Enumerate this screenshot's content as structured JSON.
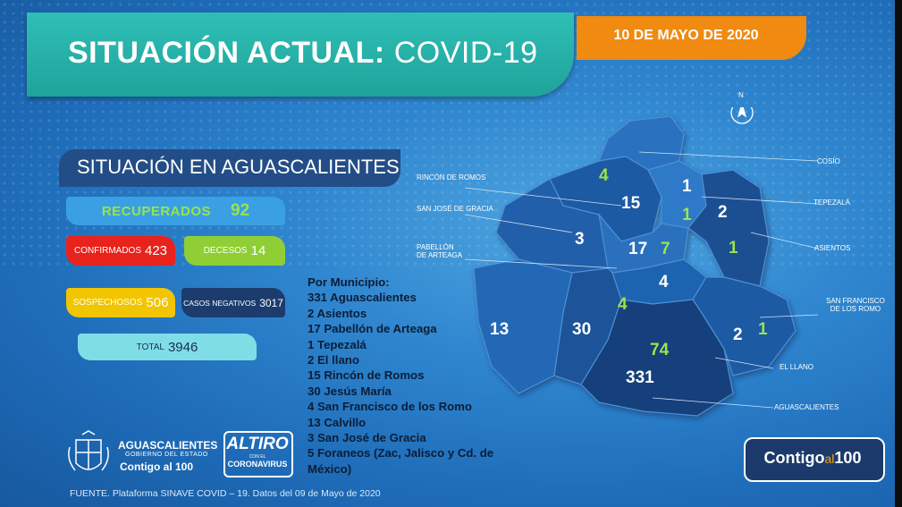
{
  "header": {
    "title_bold": "SITUACIÓN ACTUAL:",
    "title_thin": "COVID-19",
    "date": "10 DE MAYO DE 2020"
  },
  "section": {
    "title": "SITUACIÓN EN AGUASCALIENTES"
  },
  "stats": {
    "recuperados_label": "RECUPERADOS",
    "recuperados_value": "92",
    "confirmados_label": "CONFIRMADOS",
    "confirmados_value": "423",
    "decesos_label": "DECESOS",
    "decesos_value": "14",
    "sospechosos_label": "SOSPECHOSOS",
    "sospechosos_value": "506",
    "negativos_label": "CASOS NEGATIVOS",
    "negativos_value": "3017",
    "total_label": "TOTAL",
    "total_value": "3946"
  },
  "municipios": {
    "title": "Por Municipio:",
    "lines": [
      "331 Aguascalientes",
      "2   Asientos",
      "17  Pabellón de Arteaga",
      "1   Tepezalá",
      "2   El llano",
      "15   Rincón de Romos",
      "30 Jesús María",
      "4   San Francisco de los Romo",
      "13 Calvillo",
      "3  San José de Gracia",
      "5  Foraneos (Zac, Jalisco y Cd. de",
      "México)"
    ]
  },
  "map": {
    "numbers": {
      "cosio_rec": "4",
      "rincon": "15",
      "tepezala": "1",
      "tepezala_rec": "1",
      "asientos": "2",
      "asientos_rec": "1",
      "sanjose": "3",
      "pabellon": "17",
      "pabellon_rec": "7",
      "sanfrancisco": "4",
      "jesusmaria_rec": "4",
      "calvillo": "13",
      "jesusmaria": "30",
      "aguas_rec": "74",
      "aguas": "331",
      "llano": "2",
      "llano_rec": "1"
    },
    "labels": {
      "cosio": "COSÍO",
      "rincon": "RINCÓN DE ROMOS",
      "tepezala": "TEPEZALÁ",
      "sanjose": "SAN JOSÉ DE GRACIA",
      "asientos": "ASIENTOS",
      "pabellon_1": "PABELLÓN",
      "pabellon_2": "DE ARTEAGA",
      "sanfrancisco_1": "SAN FRANCISCO",
      "sanfrancisco_2": "DE LOS ROMO",
      "llano": "EL LLANO",
      "aguas": "AGUASCALIENTES",
      "compass": "N"
    }
  },
  "footer": {
    "source": "FUENTE. Plataforma SINAVE COVID – 19. Datos del 09 de Mayo de 2020",
    "gob_1": "AGUASCALIENTES",
    "gob_2": "GOBIERNO DEL ESTADO",
    "gob_3": "Contigo al 100",
    "altiro_1": "ALTIRO",
    "altiro_2": "CON EL",
    "altiro_3": "CORONAVIRUS",
    "badge_1": "Contigo",
    "badge_2": "al",
    "badge_3": "100"
  },
  "colors": {
    "teal": "#1fa39b",
    "orange": "#f08a10",
    "red": "#e8231c",
    "green": "#8fcf35",
    "yellow": "#f1c500",
    "navy": "#1c3c6e",
    "cyan": "#7fdde6",
    "accent_green": "#9ce34a"
  }
}
